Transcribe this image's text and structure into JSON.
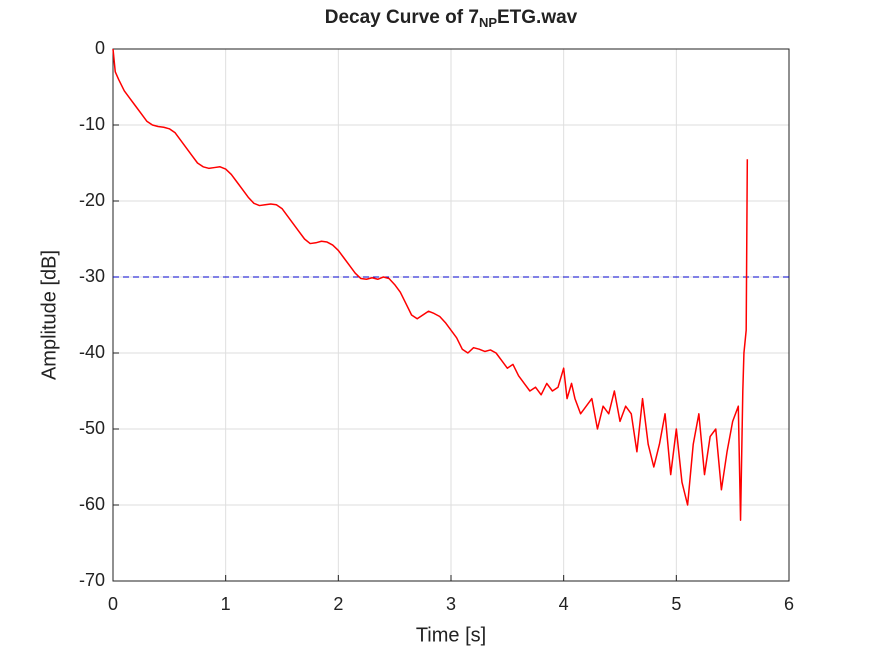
{
  "chart_data": {
    "type": "line",
    "title": [
      "Decay Curve of 7",
      "NP",
      "ETG.wav"
    ],
    "xlabel": "Time [s]",
    "ylabel": "Amplitude [dB]",
    "x": [
      0,
      0.02,
      0.05,
      0.1,
      0.15,
      0.2,
      0.25,
      0.3,
      0.35,
      0.4,
      0.45,
      0.5,
      0.55,
      0.6,
      0.65,
      0.7,
      0.75,
      0.8,
      0.85,
      0.9,
      0.95,
      1.0,
      1.05,
      1.1,
      1.15,
      1.2,
      1.25,
      1.3,
      1.35,
      1.4,
      1.45,
      1.5,
      1.55,
      1.6,
      1.65,
      1.7,
      1.75,
      1.8,
      1.85,
      1.9,
      1.95,
      2.0,
      2.05,
      2.1,
      2.15,
      2.2,
      2.25,
      2.3,
      2.35,
      2.4,
      2.45,
      2.5,
      2.55,
      2.6,
      2.65,
      2.7,
      2.75,
      2.8,
      2.85,
      2.9,
      2.95,
      3.0,
      3.05,
      3.1,
      3.15,
      3.2,
      3.25,
      3.3,
      3.35,
      3.4,
      3.45,
      3.5,
      3.55,
      3.6,
      3.65,
      3.7,
      3.75,
      3.8,
      3.85,
      3.9,
      3.95,
      4.0,
      4.03,
      4.07,
      4.1,
      4.15,
      4.2,
      4.25,
      4.3,
      4.35,
      4.4,
      4.45,
      4.5,
      4.55,
      4.6,
      4.65,
      4.7,
      4.75,
      4.8,
      4.85,
      4.9,
      4.95,
      5.0,
      5.05,
      5.1,
      5.15,
      5.2,
      5.25,
      5.3,
      5.35,
      5.4,
      5.45,
      5.5,
      5.55,
      5.57,
      5.59,
      5.6,
      5.62,
      5.63
    ],
    "series": [
      {
        "color": "#ff0000",
        "values": [
          0,
          -3,
          -4,
          -5.5,
          -6.5,
          -7.5,
          -8.5,
          -9.5,
          -10,
          -10.2,
          -10.3,
          -10.5,
          -11,
          -12,
          -13,
          -14,
          -15,
          -15.5,
          -15.7,
          -15.6,
          -15.5,
          -15.8,
          -16.5,
          -17.5,
          -18.5,
          -19.5,
          -20.3,
          -20.6,
          -20.5,
          -20.4,
          -20.5,
          -21,
          -22,
          -23,
          -24,
          -25,
          -25.6,
          -25.5,
          -25.3,
          -25.4,
          -25.8,
          -26.5,
          -27.5,
          -28.5,
          -29.5,
          -30.2,
          -30.3,
          -30.1,
          -30.3,
          -30,
          -30.2,
          -31,
          -32,
          -33.5,
          -35,
          -35.5,
          -35,
          -34.5,
          -34.8,
          -35.2,
          -36,
          -37,
          -38,
          -39.5,
          -40,
          -39.3,
          -39.5,
          -39.8,
          -39.6,
          -40,
          -41,
          -42,
          -41.5,
          -43,
          -44,
          -45,
          -44.5,
          -45.5,
          -44,
          -45,
          -44.5,
          -42,
          -46,
          -44,
          -46,
          -48,
          -47,
          -46,
          -50,
          -47,
          -48,
          -45,
          -49,
          -47,
          -48,
          -53,
          -46,
          -52,
          -55,
          -52,
          -48,
          -56,
          -50,
          -57,
          -60,
          -52,
          -48,
          -56,
          -51,
          -50,
          -58,
          -53,
          -49,
          -47,
          -62,
          -45,
          -40,
          -37,
          -14.5
        ]
      }
    ],
    "hlines": [
      {
        "value": -30,
        "color": "#0000cc"
      }
    ],
    "xlim": [
      0,
      6
    ],
    "xticks": [
      0,
      1,
      2,
      3,
      4,
      5,
      6
    ],
    "ylim": [
      -70,
      0
    ],
    "yticks": [
      -70,
      -60,
      -50,
      -40,
      -30,
      -20,
      -10,
      0
    ],
    "grid": true
  }
}
